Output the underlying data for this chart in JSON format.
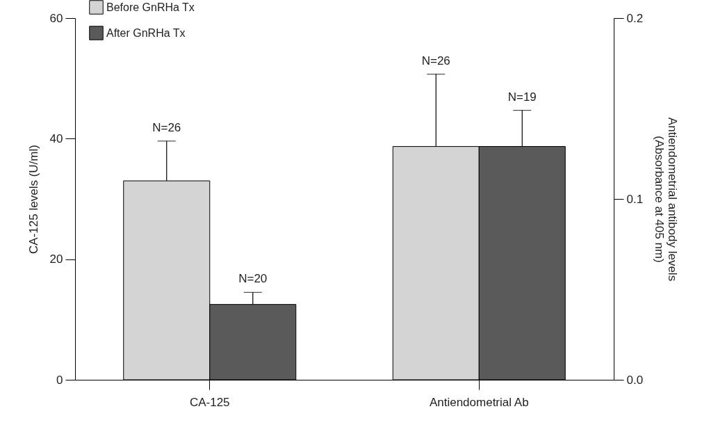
{
  "chart_data": {
    "type": "bar",
    "categories": [
      "CA-125",
      "Antiendometrial Ab"
    ],
    "ylabel": "CA-125 levels (U/ml)",
    "y2label": "Antiendometrial antibody levels\n(Absorbance at 405 nm)",
    "series": [
      {
        "name": "Before GnRHa Tx",
        "color": "#d4d4d4",
        "values": [
          33.0,
          null
        ],
        "errors": [
          [
            33.0,
            39.6
          ],
          null
        ]
      },
      {
        "name": "After GnRHa Tx",
        "color": "#5a5a5a",
        "values": [
          12.5,
          null
        ],
        "errors": [
          [
            12.5,
            14.5
          ],
          null
        ]
      },
      {
        "color": "#d4d4d4",
        "axis": "y2",
        "values": [
          null,
          0.129
        ],
        "errors": [
          null,
          [
            0.129,
            0.169
          ]
        ]
      },
      {
        "color": "#5a5a5a",
        "axis": "y2",
        "values": [
          null,
          0.129
        ],
        "errors": [
          null,
          [
            0.129,
            0.149
          ]
        ]
      }
    ],
    "annotations": [
      "N=26",
      "N=20",
      "N=26",
      "N=19"
    ],
    "ylim": [
      0,
      60
    ],
    "yticks": [
      0,
      20,
      40,
      60
    ],
    "y2lim": [
      0,
      0.2
    ],
    "y2ticks": [
      {
        "value": 0,
        "label": "0.0"
      },
      0.1,
      0.2
    ],
    "legend": "top left",
    "grid": false
  }
}
